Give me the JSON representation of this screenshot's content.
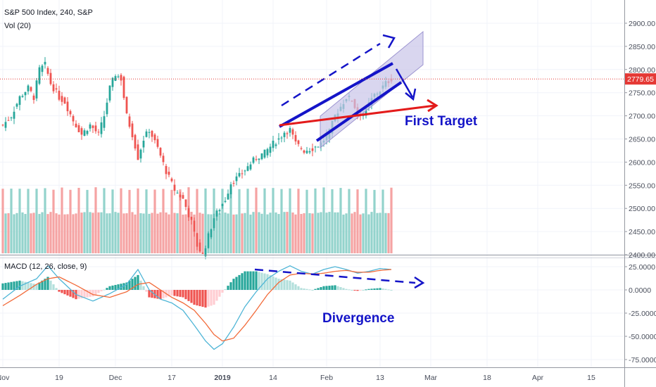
{
  "header": {
    "title": "S&P 500 Index, 240, S&P",
    "volume_label": "Vol (20)",
    "macd_label": "MACD (12, 26, close, 9)"
  },
  "colors": {
    "up": "#26a69a",
    "down": "#ef5350",
    "vol_up": "#93d3cc",
    "vol_down": "#f5a3a3",
    "price_line": "#e53935",
    "annotation_blue": "#1414c8",
    "annotation_red": "#e31b1b",
    "macd_line": "#4eb5d6",
    "signal_line": "#f26b3a",
    "channel_fill": "#c9c4e8"
  },
  "annotations": {
    "first_target": "First Target",
    "divergence": "Divergence"
  },
  "chart_data": [
    {
      "type": "candlestick",
      "title": "S&P 500 Index, 240, S&P",
      "ylim": [
        2390,
        2930
      ],
      "y_ticks": [
        "2900.00",
        "2850.00",
        "2800.00",
        "2750.00",
        "2700.00",
        "2650.00",
        "2600.00",
        "2550.00",
        "2500.00",
        "2450.00",
        "2400.00"
      ],
      "y_tick_values": [
        2900,
        2850,
        2800,
        2750,
        2700,
        2650,
        2600,
        2550,
        2500,
        2450,
        2400
      ],
      "last_price_label": "2779.65",
      "last_price": 2779.65,
      "x_ticks": [
        "Nov",
        "19",
        "Dec",
        "17",
        "2019",
        "14",
        "Feb",
        "13",
        "Mar",
        "18",
        "Apr",
        "15"
      ],
      "x_tick_index": [
        0,
        20,
        40,
        60,
        78,
        96,
        115,
        134,
        152,
        172,
        190,
        209
      ],
      "anchor_points": [
        [
          0,
          2680
        ],
        [
          3,
          2700
        ],
        [
          6,
          2740
        ],
        [
          9,
          2760
        ],
        [
          11,
          2740
        ],
        [
          13,
          2800
        ],
        [
          15,
          2810
        ],
        [
          17,
          2770
        ],
        [
          20,
          2740
        ],
        [
          22,
          2730
        ],
        [
          25,
          2690
        ],
        [
          28,
          2660
        ],
        [
          31,
          2680
        ],
        [
          34,
          2660
        ],
        [
          36,
          2700
        ],
        [
          38,
          2760
        ],
        [
          40,
          2790
        ],
        [
          42,
          2780
        ],
        [
          44,
          2700
        ],
        [
          46,
          2660
        ],
        [
          48,
          2610
        ],
        [
          50,
          2650
        ],
        [
          52,
          2670
        ],
        [
          55,
          2630
        ],
        [
          58,
          2580
        ],
        [
          61,
          2540
        ],
        [
          64,
          2520
        ],
        [
          67,
          2470
        ],
        [
          69,
          2420
        ],
        [
          71,
          2400
        ],
        [
          73,
          2440
        ],
        [
          75,
          2480
        ],
        [
          77,
          2500
        ],
        [
          79,
          2520
        ],
        [
          81,
          2555
        ],
        [
          84,
          2570
        ],
        [
          87,
          2590
        ],
        [
          90,
          2610
        ],
        [
          93,
          2620
        ],
        [
          96,
          2640
        ],
        [
          98,
          2650
        ],
        [
          100,
          2665
        ],
        [
          102,
          2670
        ],
        [
          104,
          2640
        ],
        [
          107,
          2625
        ],
        [
          110,
          2630
        ],
        [
          113,
          2640
        ],
        [
          116,
          2665
        ],
        [
          118,
          2700
        ],
        [
          120,
          2720
        ],
        [
          122,
          2740
        ],
        [
          124,
          2735
        ],
        [
          126,
          2705
        ],
        [
          128,
          2705
        ],
        [
          130,
          2725
        ],
        [
          132,
          2745
        ],
        [
          134,
          2755
        ],
        [
          136,
          2770
        ],
        [
          138,
          2780
        ]
      ]
    },
    {
      "type": "bar",
      "title": "Vol (20)",
      "note": "volume histogram, alternating up/down bars, no visible axis values"
    },
    {
      "type": "line",
      "title": "MACD (12, 26, close, 9)",
      "ylim": [
        -77,
        35
      ],
      "y_ticks": [
        "25.0000",
        "0.0000",
        "-25.0000",
        "-50.0000",
        "-75.0000"
      ],
      "y_tick_values": [
        25,
        0,
        -25,
        -50,
        -75
      ],
      "series": [
        {
          "name": "MACD",
          "points": [
            [
              0,
              -10
            ],
            [
              6,
              4
            ],
            [
              12,
              12
            ],
            [
              16,
              26
            ],
            [
              20,
              12
            ],
            [
              26,
              -5
            ],
            [
              32,
              -12
            ],
            [
              38,
              -4
            ],
            [
              44,
              6
            ],
            [
              48,
              22
            ],
            [
              52,
              0
            ],
            [
              56,
              -10
            ],
            [
              60,
              -14
            ],
            [
              64,
              -22
            ],
            [
              68,
              -38
            ],
            [
              72,
              -55
            ],
            [
              75,
              -64
            ],
            [
              78,
              -58
            ],
            [
              82,
              -40
            ],
            [
              86,
              -18
            ],
            [
              90,
              -2
            ],
            [
              94,
              12
            ],
            [
              98,
              20
            ],
            [
              102,
              26
            ],
            [
              106,
              20
            ],
            [
              110,
              17
            ],
            [
              114,
              22
            ],
            [
              118,
              25
            ],
            [
              122,
              22
            ],
            [
              126,
              18
            ],
            [
              130,
              20
            ],
            [
              134,
              23
            ],
            [
              138,
              22
            ]
          ]
        },
        {
          "name": "Signal",
          "points": [
            [
              0,
              -17
            ],
            [
              6,
              -6
            ],
            [
              12,
              6
            ],
            [
              16,
              12
            ],
            [
              20,
              14
            ],
            [
              26,
              5
            ],
            [
              32,
              -5
            ],
            [
              38,
              -8
            ],
            [
              44,
              -2
            ],
            [
              48,
              6
            ],
            [
              52,
              8
            ],
            [
              56,
              0
            ],
            [
              60,
              -8
            ],
            [
              64,
              -14
            ],
            [
              68,
              -22
            ],
            [
              72,
              -36
            ],
            [
              75,
              -48
            ],
            [
              78,
              -55
            ],
            [
              82,
              -52
            ],
            [
              86,
              -38
            ],
            [
              90,
              -22
            ],
            [
              94,
              -5
            ],
            [
              98,
              8
            ],
            [
              102,
              16
            ],
            [
              106,
              18
            ],
            [
              110,
              17
            ],
            [
              114,
              18
            ],
            [
              118,
              20
            ],
            [
              122,
              21
            ],
            [
              126,
              19
            ],
            [
              130,
              19
            ],
            [
              134,
              21
            ],
            [
              138,
              22
            ]
          ]
        }
      ]
    }
  ]
}
